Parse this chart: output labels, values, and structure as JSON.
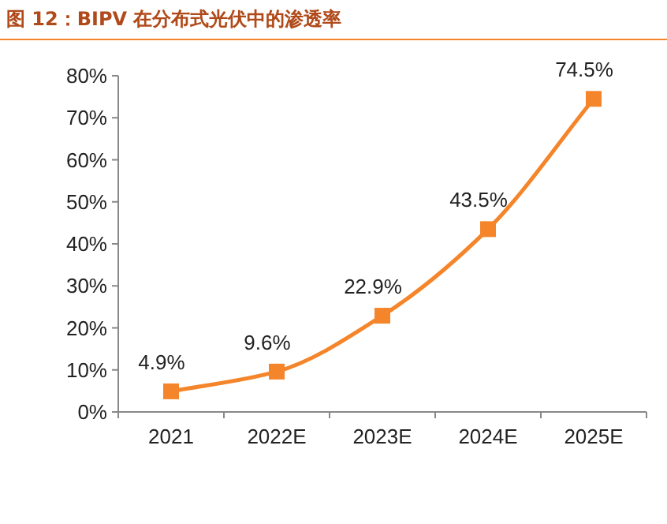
{
  "chart_data": {
    "type": "line",
    "title": "图 12：BIPV 在分布式光伏中的渗透率",
    "categories": [
      "2021",
      "2022E",
      "2023E",
      "2024E",
      "2025E"
    ],
    "series": [
      {
        "color": "#f5852a",
        "values": [
          4.9,
          9.6,
          22.9,
          43.5,
          74.5
        ],
        "value_labels": [
          "4.9%",
          "9.6%",
          "22.9%",
          "43.5%",
          "74.5%"
        ]
      }
    ],
    "ylim": [
      0,
      80
    ],
    "yticks": [
      {
        "value": 0,
        "label": "0%"
      },
      {
        "value": 10,
        "label": "10%"
      },
      {
        "value": 20,
        "label": "20%"
      },
      {
        "value": 30,
        "label": "30%"
      },
      {
        "value": 40,
        "label": "40%"
      },
      {
        "value": 50,
        "label": "50%"
      },
      {
        "value": 60,
        "label": "60%"
      },
      {
        "value": 70,
        "label": "70%"
      },
      {
        "value": 80,
        "label": "80%"
      }
    ],
    "marker": "square",
    "line_style": "solid"
  }
}
